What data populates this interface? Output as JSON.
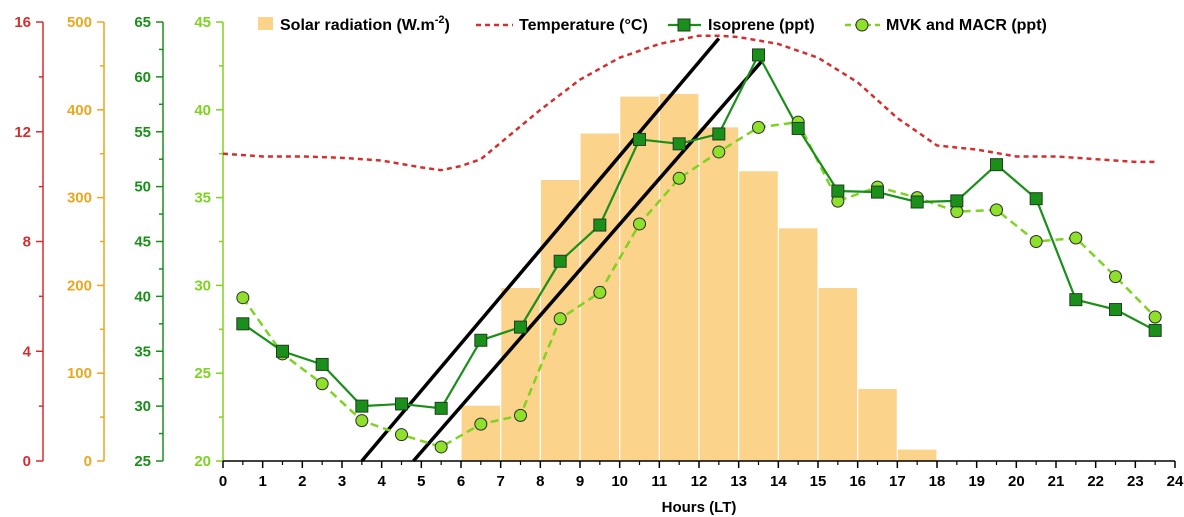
{
  "chart_data": {
    "type": "bar",
    "xlabel": "Hours (LT)",
    "xlim": [
      0,
      24
    ],
    "xticks": [
      0,
      1,
      2,
      3,
      4,
      5,
      6,
      7,
      8,
      9,
      10,
      11,
      12,
      13,
      14,
      15,
      16,
      17,
      18,
      19,
      20,
      21,
      22,
      23,
      24
    ],
    "grid": false,
    "legend_position": "top",
    "axes": {
      "temperature": {
        "range": [
          0,
          16
        ],
        "ticks": [
          0,
          4,
          8,
          12,
          16
        ],
        "color": "#d32f2f"
      },
      "solar": {
        "range": [
          0,
          500
        ],
        "ticks": [
          0,
          100,
          200,
          300,
          400,
          500
        ],
        "color": "#e8a81f"
      },
      "isoprene": {
        "range": [
          25,
          65
        ],
        "ticks": [
          25,
          30,
          35,
          40,
          45,
          50,
          55,
          60,
          65
        ],
        "color": "#1a8f1a"
      },
      "mvk": {
        "range": [
          20,
          45
        ],
        "ticks": [
          20,
          25,
          30,
          35,
          40,
          45
        ],
        "color": "#7ed321"
      }
    },
    "series": [
      {
        "name": "Solar radiation (W.m",
        "name_sup": "-2",
        "name_suffix": ")",
        "type": "bar",
        "axis": "solar",
        "color": "#fbd38a",
        "x": [
          6.5,
          7.5,
          8.5,
          9.5,
          10.5,
          11.5,
          12.5,
          13.5,
          14.5,
          15.5,
          16.5,
          17.5
        ],
        "values": [
          63,
          197,
          320,
          373,
          415,
          418,
          380,
          330,
          265,
          197,
          82,
          13
        ]
      },
      {
        "name": "Temperature (°C)",
        "type": "line",
        "axis": "temperature",
        "color": "#d32f2f",
        "x": [
          0,
          1,
          2,
          3,
          4,
          5,
          5.5,
          6,
          6.5,
          7,
          8,
          9,
          10,
          11,
          12,
          12.5,
          13,
          14,
          15,
          16,
          17,
          18,
          19,
          20,
          21,
          22,
          23,
          23.5
        ],
        "values": [
          11.2,
          11.1,
          11.1,
          11.05,
          10.95,
          10.7,
          10.6,
          10.75,
          11.0,
          11.6,
          12.8,
          13.9,
          14.7,
          15.2,
          15.5,
          15.5,
          15.45,
          15.2,
          14.7,
          13.8,
          12.5,
          11.5,
          11.35,
          11.1,
          11.1,
          11.0,
          10.9,
          10.9
        ]
      },
      {
        "name": "Isoprene (ppt)",
        "type": "line",
        "axis": "isoprene",
        "color": "#1a8f1a",
        "marker_fill": "#1a8f1a",
        "x": [
          0.5,
          1.5,
          2.5,
          3.5,
          4.5,
          5.5,
          6.5,
          7.5,
          8.5,
          9.5,
          10.5,
          11.5,
          12.5,
          13.5,
          14.5,
          15.5,
          16.5,
          17.5,
          18.5,
          19.5,
          20.5,
          21.5,
          22.5,
          23.5
        ],
        "values": [
          37.5,
          35.0,
          33.8,
          30.0,
          30.2,
          29.8,
          36.0,
          37.2,
          43.2,
          46.5,
          54.3,
          53.9,
          54.8,
          62.0,
          55.3,
          49.6,
          49.5,
          48.6,
          48.7,
          52.0,
          48.9,
          39.7,
          38.8,
          36.9
        ]
      },
      {
        "name": "MVK and MACR (ppt)",
        "type": "line",
        "dashed": true,
        "axis": "mvk",
        "color": "#7ed321",
        "marker_fill": "#8ee02a",
        "x": [
          0.5,
          1.5,
          2.5,
          3.5,
          4.5,
          5.5,
          6.5,
          7.5,
          8.5,
          9.5,
          10.5,
          11.5,
          12.5,
          13.5,
          14.5,
          15.5,
          16.5,
          17.5,
          18.5,
          19.5,
          20.5,
          21.5,
          22.5,
          23.5
        ],
        "values": [
          29.3,
          26.1,
          24.4,
          22.3,
          21.5,
          20.8,
          22.1,
          22.6,
          28.1,
          29.6,
          33.5,
          36.1,
          37.6,
          39.0,
          39.3,
          34.8,
          35.6,
          35.0,
          34.2,
          34.3,
          32.5,
          32.7,
          30.5,
          28.2
        ]
      }
    ],
    "reference_lines": [
      {
        "axis": "isoprene",
        "x": [
          3.5,
          12.5
        ],
        "values": [
          25,
          63.5
        ],
        "color": "#000000"
      },
      {
        "axis": "isoprene",
        "x": [
          4.8,
          13.6
        ],
        "values": [
          25,
          61.5
        ],
        "color": "#000000"
      }
    ]
  }
}
